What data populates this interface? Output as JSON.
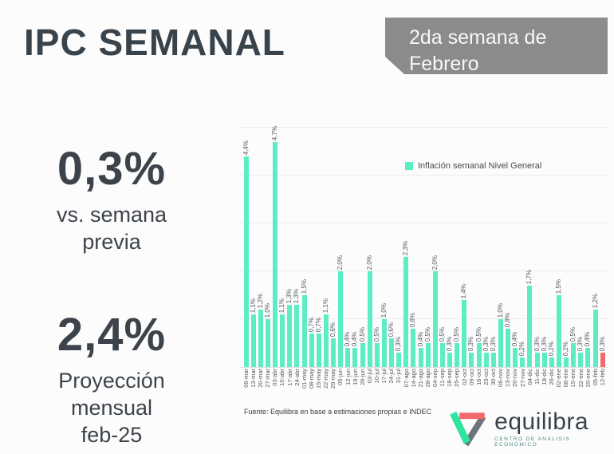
{
  "page": {
    "title": "IPC SEMANAL",
    "badge": "2da semana de Febrero"
  },
  "kpis": {
    "weekly": {
      "value": "0,3%",
      "label": "vs. semana\nprevia",
      "color": "#f8716e"
    },
    "monthly": {
      "value": "2,4%",
      "label": "Proyección\nmensual\nfeb-25",
      "color": "#6fecc8"
    }
  },
  "chart_data": {
    "type": "bar",
    "legend": "Inflación semanal Nivel General",
    "categories": [
      "06-mar",
      "13-mar",
      "20-mar",
      "27-mar",
      "03-abr",
      "10-abr",
      "17-abr",
      "24-abr",
      "01-may",
      "08-may",
      "15-may",
      "22-may",
      "29-may",
      "05-jun",
      "12-jun",
      "19-jun",
      "26-jun",
      "03-jul",
      "10-jul",
      "17-jul",
      "24-jul",
      "31-jul",
      "07-ago",
      "14-ago",
      "21-ago",
      "28-ago",
      "04-sep",
      "11-sep",
      "18-sep",
      "25-sep",
      "02-oct",
      "09-oct",
      "16-oct",
      "23-oct",
      "30-oct",
      "06-nov",
      "13-nov",
      "20-nov",
      "27-nov",
      "04-dic",
      "11-dic",
      "18-dic",
      "26-dic",
      "02-ene",
      "08-ene",
      "15-ene",
      "22-ene",
      "29-ene",
      "05-feb",
      "12-feb"
    ],
    "values": [
      4.4,
      1.1,
      1.2,
      1.0,
      4.7,
      1.1,
      1.3,
      1.3,
      1.5,
      0.7,
      0.7,
      1.1,
      0.6,
      2.0,
      0.4,
      0.4,
      0.5,
      2.0,
      0.5,
      1.0,
      0.6,
      0.3,
      2.3,
      0.8,
      0.4,
      0.5,
      2.0,
      0.5,
      0.3,
      0.5,
      1.4,
      0.3,
      0.5,
      0.3,
      0.3,
      1.0,
      0.8,
      0.4,
      0.2,
      1.7,
      0.3,
      0.3,
      0.2,
      1.5,
      0.2,
      0.5,
      0.3,
      0.4,
      1.2,
      0.3
    ],
    "ylim": [
      0,
      5
    ],
    "grid": true,
    "bar_color": "#5dedc4",
    "highlight_color": "#f4696b",
    "highlight_index": 49,
    "decimal_separator": ",",
    "value_suffix": "%"
  },
  "source": "Fuente: Equilibra en base a estimaciones propias e INDEC",
  "logo": {
    "name": "equilibra",
    "tagline": "CENTRO DE ANÁLISIS ECONÓMICO"
  }
}
